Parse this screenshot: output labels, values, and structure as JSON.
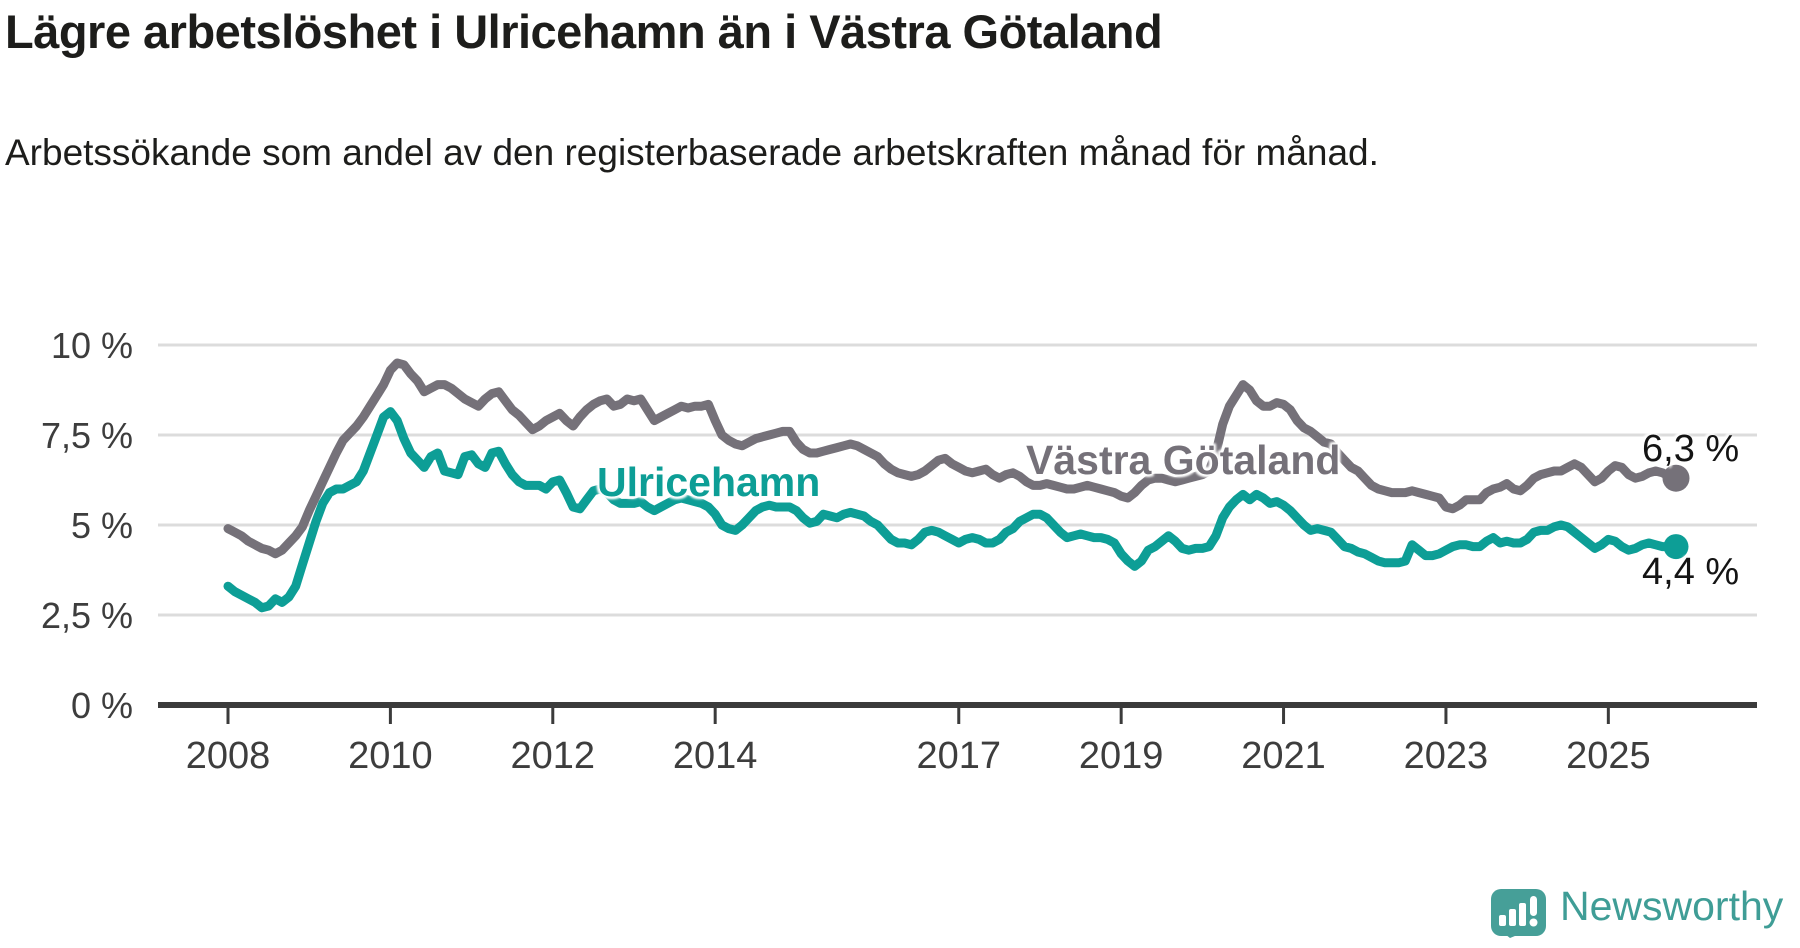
{
  "title": "Lägre arbetslöshet i Ulricehamn än i Västra Götaland",
  "subtitle": "Arbetssökande som andel av den registerbaserade arbetskraften månad för månad.",
  "branding": {
    "logo_text": "Newsworthy",
    "logo_icon": "speech-bubble-bar-chart-icon"
  },
  "colors": {
    "ulricehamn": "#0d9e96",
    "vastra_gotaland": "#757179",
    "grid": "#dcdcdc",
    "axis": "#3b3b3b",
    "axis_text": "#3d3d3d",
    "heading_text": "#1d1d1b",
    "end_label_text": "#141414",
    "logo": "#469f98",
    "logo_text": "#3f9d96"
  },
  "chart_data": {
    "type": "line",
    "title": "Lägre arbetslöshet i Ulricehamn än i Västra Götaland",
    "subtitle": "Arbetssökande som andel av den registerbaserade arbetskraften månad för månad.",
    "x_unit": "month",
    "x_start": "2008-01",
    "x_end": "2025-11",
    "ylim": [
      0,
      10.8
    ],
    "grid": "horizontal",
    "legend_position": "inline-labels",
    "xticks": [
      {
        "label": "2008",
        "year": 2008
      },
      {
        "label": "2010",
        "year": 2010
      },
      {
        "label": "2012",
        "year": 2012
      },
      {
        "label": "2014",
        "year": 2014
      },
      {
        "label": "2017",
        "year": 2017
      },
      {
        "label": "2019",
        "year": 2019
      },
      {
        "label": "2021",
        "year": 2021
      },
      {
        "label": "2023",
        "year": 2023
      },
      {
        "label": "2025",
        "year": 2025
      }
    ],
    "yticks": [
      {
        "label": "0 %",
        "value": 0
      },
      {
        "label": "2,5 %",
        "value": 2.5
      },
      {
        "label": "5 %",
        "value": 5
      },
      {
        "label": "7,5 %",
        "value": 7.5
      },
      {
        "label": "10 %",
        "value": 10
      }
    ],
    "series": [
      {
        "name": "Västra Götaland",
        "color": "#757179",
        "end_value": 6.3,
        "end_label": "6,3 %",
        "values": [
          4.9,
          4.8,
          4.7,
          4.55,
          4.45,
          4.35,
          4.3,
          4.2,
          4.3,
          4.5,
          4.7,
          4.95,
          5.4,
          5.8,
          6.2,
          6.6,
          7.0,
          7.35,
          7.55,
          7.75,
          8.0,
          8.3,
          8.6,
          8.9,
          9.3,
          9.5,
          9.45,
          9.2,
          9.0,
          8.7,
          8.8,
          8.9,
          8.9,
          8.8,
          8.65,
          8.5,
          8.4,
          8.3,
          8.5,
          8.65,
          8.7,
          8.45,
          8.2,
          8.05,
          7.85,
          7.65,
          7.75,
          7.9,
          8.0,
          8.1,
          7.9,
          7.75,
          8.0,
          8.2,
          8.35,
          8.45,
          8.5,
          8.3,
          8.35,
          8.5,
          8.45,
          8.5,
          8.2,
          7.9,
          8.0,
          8.1,
          8.2,
          8.3,
          8.25,
          8.3,
          8.3,
          8.35,
          7.9,
          7.5,
          7.35,
          7.25,
          7.2,
          7.3,
          7.4,
          7.45,
          7.5,
          7.55,
          7.6,
          7.6,
          7.3,
          7.1,
          7.0,
          7.0,
          7.05,
          7.1,
          7.15,
          7.2,
          7.25,
          7.2,
          7.1,
          7.0,
          6.9,
          6.7,
          6.55,
          6.45,
          6.4,
          6.35,
          6.4,
          6.5,
          6.65,
          6.8,
          6.85,
          6.7,
          6.6,
          6.5,
          6.45,
          6.5,
          6.55,
          6.4,
          6.3,
          6.4,
          6.45,
          6.35,
          6.2,
          6.1,
          6.1,
          6.15,
          6.1,
          6.05,
          6.0,
          6.0,
          6.05,
          6.1,
          6.05,
          6.0,
          5.95,
          5.9,
          5.8,
          5.75,
          5.9,
          6.1,
          6.25,
          6.3,
          6.3,
          6.25,
          6.2,
          6.25,
          6.3,
          6.35,
          6.4,
          6.5,
          7.0,
          7.8,
          8.3,
          8.6,
          8.9,
          8.75,
          8.45,
          8.3,
          8.3,
          8.4,
          8.35,
          8.2,
          7.9,
          7.7,
          7.6,
          7.45,
          7.3,
          7.25,
          7.0,
          6.8,
          6.6,
          6.5,
          6.3,
          6.1,
          6.0,
          5.95,
          5.9,
          5.9,
          5.9,
          5.95,
          5.9,
          5.85,
          5.8,
          5.75,
          5.5,
          5.45,
          5.55,
          5.7,
          5.7,
          5.7,
          5.9,
          6.0,
          6.05,
          6.15,
          6.0,
          5.95,
          6.1,
          6.3,
          6.4,
          6.45,
          6.5,
          6.5,
          6.6,
          6.7,
          6.6,
          6.4,
          6.2,
          6.3,
          6.5,
          6.65,
          6.6,
          6.4,
          6.3,
          6.35,
          6.45,
          6.5,
          6.45,
          6.35,
          6.3
        ]
      },
      {
        "name": "Ulricehamn",
        "color": "#0d9e96",
        "end_value": 4.4,
        "end_label": "4,4 %",
        "values": [
          3.3,
          3.15,
          3.05,
          2.95,
          2.85,
          2.7,
          2.75,
          2.95,
          2.85,
          3.0,
          3.3,
          3.9,
          4.5,
          5.1,
          5.6,
          5.9,
          6.0,
          6.0,
          6.1,
          6.2,
          6.5,
          7.0,
          7.5,
          8.0,
          8.15,
          7.9,
          7.4,
          7.0,
          6.8,
          6.6,
          6.9,
          7.0,
          6.5,
          6.45,
          6.4,
          6.9,
          6.95,
          6.7,
          6.6,
          7.0,
          7.05,
          6.7,
          6.4,
          6.2,
          6.1,
          6.1,
          6.1,
          6.0,
          6.2,
          6.25,
          5.9,
          5.5,
          5.45,
          5.7,
          5.95,
          6.0,
          5.9,
          5.7,
          5.6,
          5.6,
          5.6,
          5.65,
          5.5,
          5.4,
          5.5,
          5.6,
          5.7,
          5.75,
          5.7,
          5.65,
          5.6,
          5.5,
          5.3,
          5.0,
          4.9,
          4.85,
          5.0,
          5.2,
          5.4,
          5.5,
          5.55,
          5.5,
          5.5,
          5.5,
          5.4,
          5.2,
          5.05,
          5.1,
          5.3,
          5.25,
          5.2,
          5.3,
          5.35,
          5.3,
          5.25,
          5.1,
          5.0,
          4.8,
          4.6,
          4.5,
          4.5,
          4.45,
          4.6,
          4.8,
          4.85,
          4.8,
          4.7,
          4.6,
          4.5,
          4.6,
          4.65,
          4.6,
          4.5,
          4.5,
          4.6,
          4.8,
          4.9,
          5.1,
          5.2,
          5.3,
          5.3,
          5.2,
          5.0,
          4.8,
          4.65,
          4.7,
          4.75,
          4.7,
          4.65,
          4.65,
          4.6,
          4.5,
          4.2,
          4.0,
          3.85,
          4.0,
          4.3,
          4.4,
          4.55,
          4.7,
          4.55,
          4.35,
          4.3,
          4.35,
          4.35,
          4.4,
          4.7,
          5.2,
          5.5,
          5.7,
          5.85,
          5.7,
          5.85,
          5.75,
          5.6,
          5.65,
          5.55,
          5.4,
          5.2,
          5.0,
          4.85,
          4.9,
          4.85,
          4.8,
          4.6,
          4.4,
          4.35,
          4.25,
          4.2,
          4.1,
          4.0,
          3.95,
          3.95,
          3.95,
          4.0,
          4.45,
          4.3,
          4.15,
          4.15,
          4.2,
          4.3,
          4.4,
          4.45,
          4.45,
          4.4,
          4.4,
          4.55,
          4.65,
          4.5,
          4.55,
          4.5,
          4.5,
          4.6,
          4.8,
          4.85,
          4.85,
          4.95,
          5.0,
          4.95,
          4.8,
          4.65,
          4.5,
          4.35,
          4.45,
          4.6,
          4.55,
          4.4,
          4.3,
          4.35,
          4.45,
          4.5,
          4.45,
          4.4,
          4.4,
          4.4
        ]
      }
    ]
  }
}
